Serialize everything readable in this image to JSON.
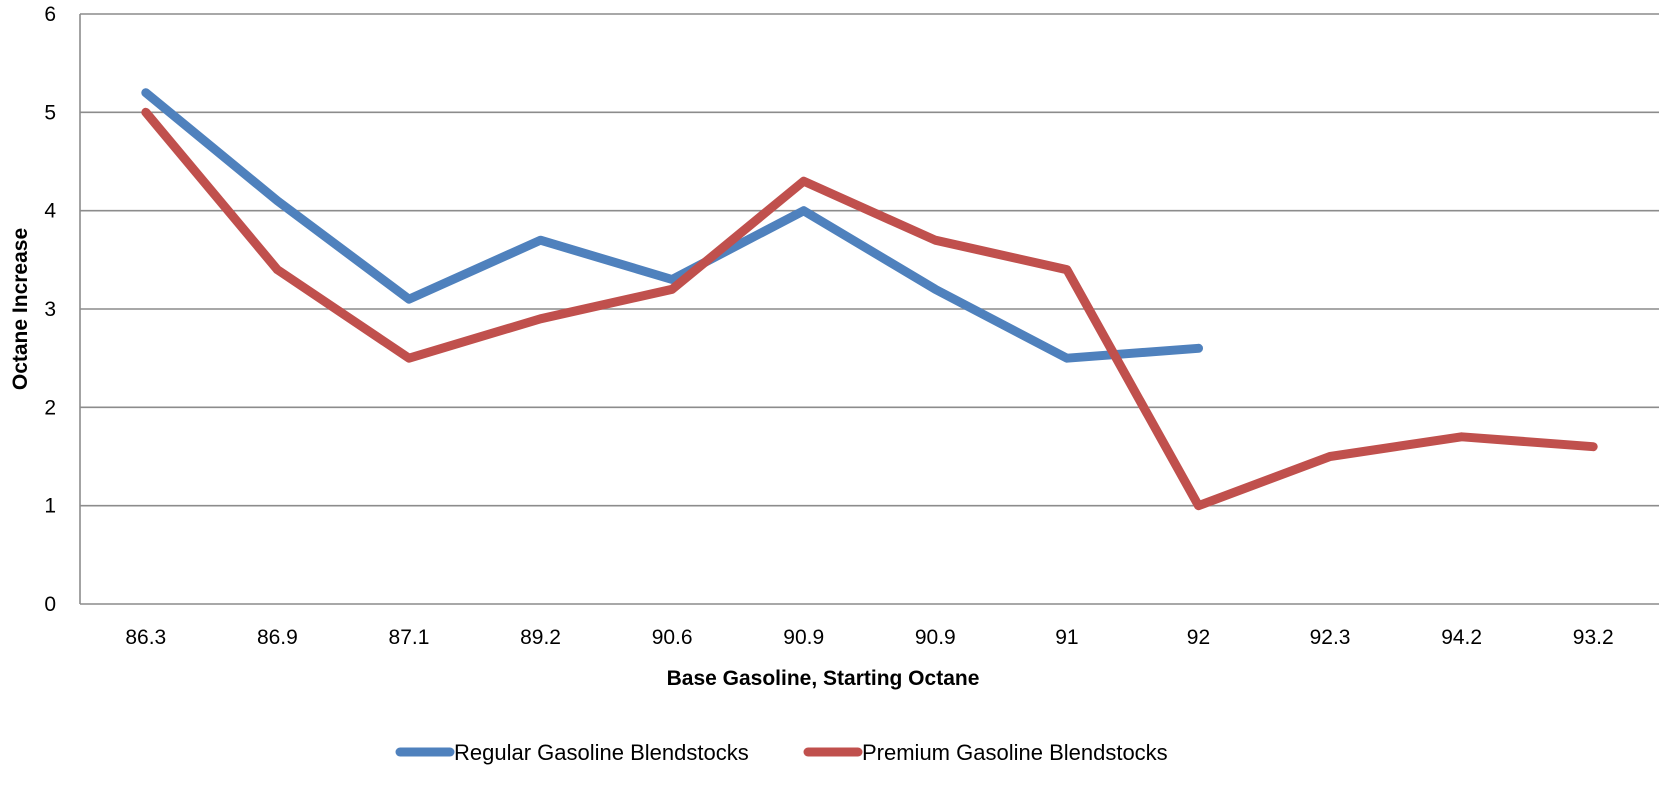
{
  "chart_data": {
    "type": "line",
    "title": "",
    "xlabel": "Base Gasoline, Starting Octane",
    "ylabel": "Octane Increase",
    "categories": [
      "86.3",
      "86.9",
      "87.1",
      "89.2",
      "90.6",
      "90.9",
      "90.9",
      "91",
      "92",
      "92.3",
      "94.2",
      "93.2"
    ],
    "ylim": [
      0,
      6
    ],
    "yticks": [
      "0",
      "1",
      "2",
      "3",
      "4",
      "5",
      "6"
    ],
    "grid": true,
    "legend_position": "bottom",
    "series": [
      {
        "name": "Regular Gasoline Blendstocks",
        "color": "#4f81bd",
        "values": [
          5.2,
          4.1,
          3.1,
          3.7,
          3.3,
          4.0,
          3.2,
          2.5,
          2.6,
          null,
          null,
          null
        ]
      },
      {
        "name": "Premium Gasoline Blendstocks",
        "color": "#c0504d",
        "values": [
          5.0,
          3.4,
          2.5,
          2.9,
          3.2,
          4.3,
          3.7,
          3.4,
          1.0,
          1.5,
          1.7,
          1.6
        ]
      }
    ]
  }
}
